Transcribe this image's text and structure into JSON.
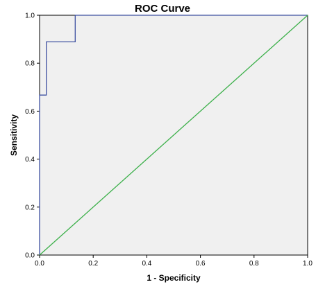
{
  "chart_data": {
    "type": "line",
    "title": "ROC Curve",
    "xlabel": "1 - Specificity",
    "ylabel": "Sensitivity",
    "xlim": [
      0.0,
      1.0
    ],
    "ylim": [
      0.0,
      1.0
    ],
    "x_ticks": [
      "0.0",
      "0.2",
      "0.4",
      "0.6",
      "0.8",
      "1.0"
    ],
    "y_ticks": [
      "0.0",
      "0.2",
      "0.4",
      "0.6",
      "0.8",
      "1.0"
    ],
    "grid": false,
    "legend": "none",
    "series": [
      {
        "color": "#3d4fa0",
        "step": true,
        "x": [
          0.0,
          0.0,
          0.025,
          0.025,
          0.133,
          0.133,
          1.0
        ],
        "y": [
          0.0,
          0.667,
          0.667,
          0.889,
          0.889,
          1.0,
          1.0
        ]
      },
      {
        "color": "#3cb04a",
        "x": [
          0.0,
          1.0
        ],
        "y": [
          0.0,
          1.0
        ]
      }
    ],
    "colors": {
      "plot_background": "#f0f0f0",
      "frame": "#000000"
    }
  }
}
